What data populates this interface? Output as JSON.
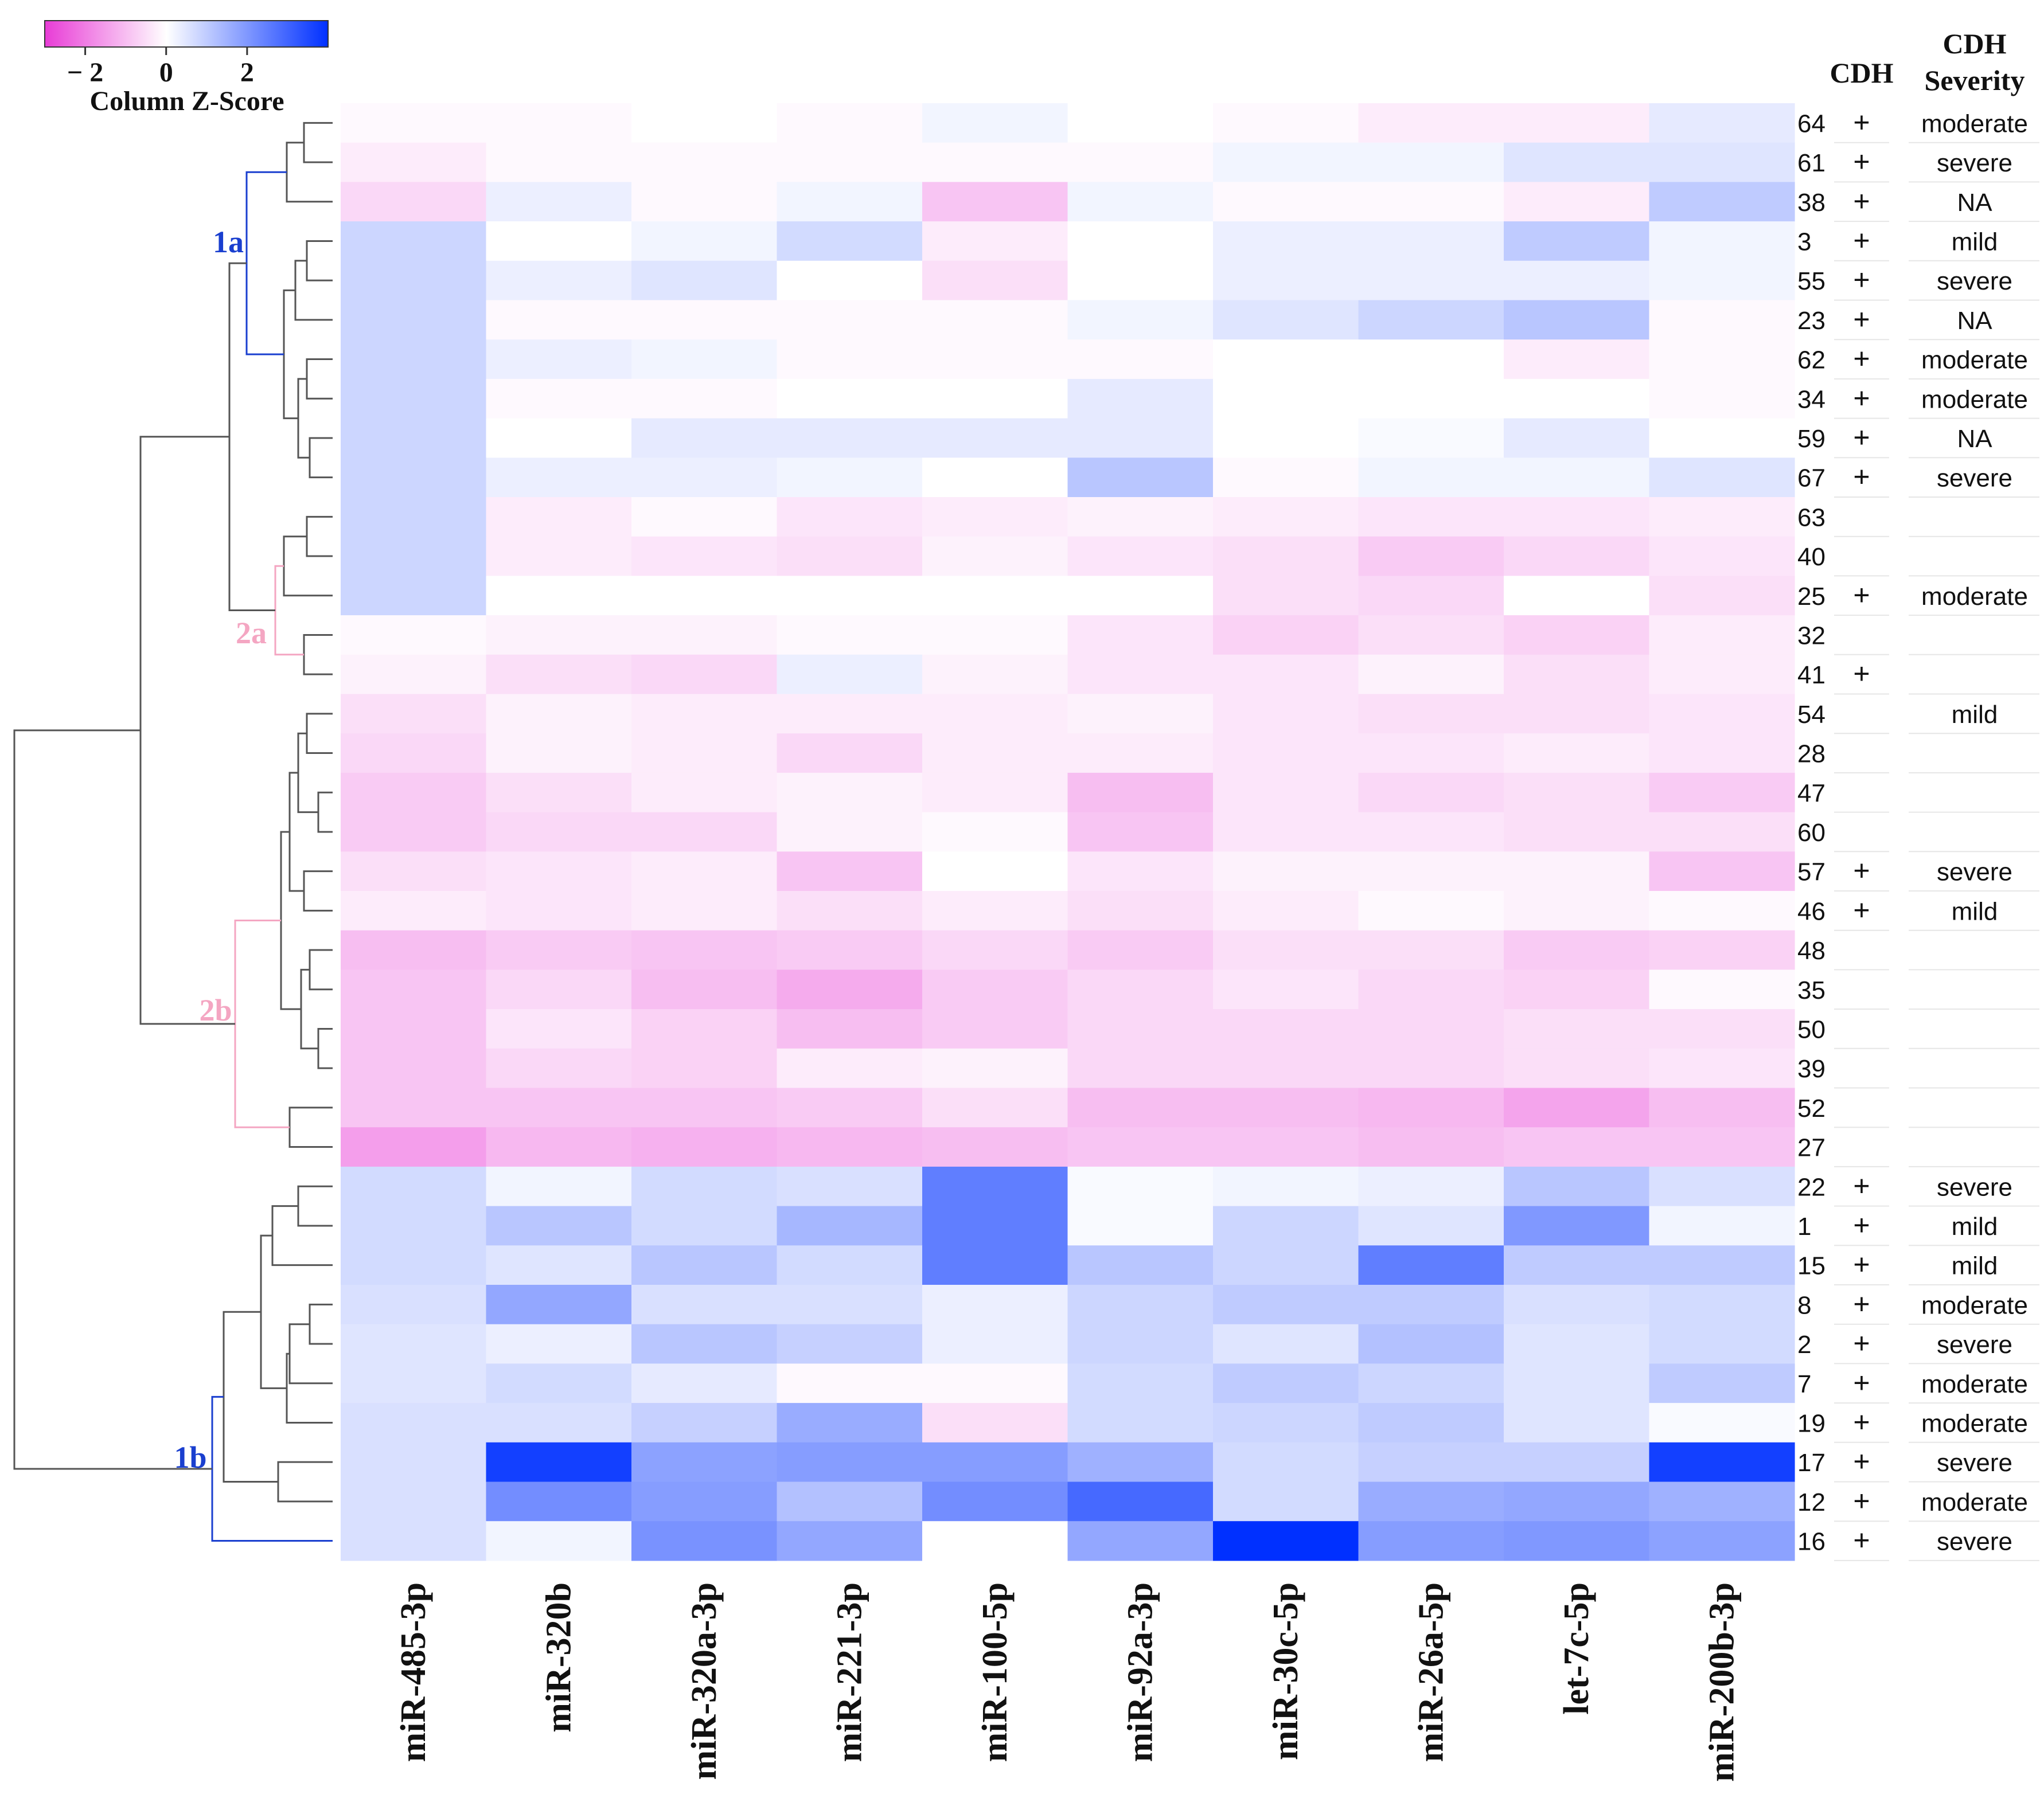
{
  "chart_data": {
    "type": "heatmap",
    "title": "",
    "legend": {
      "title": "Column Z-Score",
      "ticks": [
        {
          "value": -2,
          "label": "− 2"
        },
        {
          "value": 0,
          "label": "0"
        },
        {
          "value": 2,
          "label": "2"
        }
      ],
      "range": [
        -3,
        4
      ],
      "colors": {
        "low": "#e83cd6",
        "mid": "#ffffff",
        "high": "#0030ff"
      }
    },
    "columns": [
      "miR-485-3p",
      "miR-320b",
      "miR-320a-3p",
      "miR-221-3p",
      "miR-100-5p",
      "miR-92a-3p",
      "miR-30c-5p",
      "miR-26a-5p",
      "let-7c-5p",
      "miR-200b-3p"
    ],
    "rows": [
      {
        "sample": "64",
        "cdh": "+",
        "severity": "moderate"
      },
      {
        "sample": "61",
        "cdh": "+",
        "severity": "severe"
      },
      {
        "sample": "38",
        "cdh": "+",
        "severity": "NA"
      },
      {
        "sample": "3",
        "cdh": "+",
        "severity": "mild"
      },
      {
        "sample": "55",
        "cdh": "+",
        "severity": "severe"
      },
      {
        "sample": "23",
        "cdh": "+",
        "severity": "NA"
      },
      {
        "sample": "62",
        "cdh": "+",
        "severity": "moderate"
      },
      {
        "sample": "34",
        "cdh": "+",
        "severity": "moderate"
      },
      {
        "sample": "59",
        "cdh": "+",
        "severity": "NA"
      },
      {
        "sample": "67",
        "cdh": "+",
        "severity": "severe"
      },
      {
        "sample": "63",
        "cdh": "",
        "severity": ""
      },
      {
        "sample": "40",
        "cdh": "",
        "severity": ""
      },
      {
        "sample": "25",
        "cdh": "+",
        "severity": "moderate"
      },
      {
        "sample": "32",
        "cdh": "",
        "severity": ""
      },
      {
        "sample": "41",
        "cdh": "+",
        "severity": ""
      },
      {
        "sample": "54",
        "cdh": "",
        "severity": "mild"
      },
      {
        "sample": "28",
        "cdh": "",
        "severity": ""
      },
      {
        "sample": "47",
        "cdh": "",
        "severity": ""
      },
      {
        "sample": "60",
        "cdh": "",
        "severity": ""
      },
      {
        "sample": "57",
        "cdh": "+",
        "severity": "severe"
      },
      {
        "sample": "46",
        "cdh": "+",
        "severity": "mild"
      },
      {
        "sample": "48",
        "cdh": "",
        "severity": ""
      },
      {
        "sample": "35",
        "cdh": "",
        "severity": ""
      },
      {
        "sample": "50",
        "cdh": "",
        "severity": ""
      },
      {
        "sample": "39",
        "cdh": "",
        "severity": ""
      },
      {
        "sample": "52",
        "cdh": "",
        "severity": ""
      },
      {
        "sample": "27",
        "cdh": "",
        "severity": ""
      },
      {
        "sample": "22",
        "cdh": "+",
        "severity": "severe"
      },
      {
        "sample": "1",
        "cdh": "+",
        "severity": "mild"
      },
      {
        "sample": "15",
        "cdh": "+",
        "severity": "mild"
      },
      {
        "sample": "8",
        "cdh": "+",
        "severity": "moderate"
      },
      {
        "sample": "2",
        "cdh": "+",
        "severity": "severe"
      },
      {
        "sample": "7",
        "cdh": "+",
        "severity": "moderate"
      },
      {
        "sample": "19",
        "cdh": "+",
        "severity": "moderate"
      },
      {
        "sample": "17",
        "cdh": "+",
        "severity": "severe"
      },
      {
        "sample": "12",
        "cdh": "+",
        "severity": "moderate"
      },
      {
        "sample": "16",
        "cdh": "+",
        "severity": "severe"
      }
    ],
    "values": [
      [
        -0.1,
        -0.1,
        0,
        -0.1,
        0.2,
        0,
        -0.1,
        -0.3,
        -0.3,
        0.4
      ],
      [
        -0.3,
        -0.1,
        -0.1,
        -0.1,
        -0.1,
        -0.1,
        0.2,
        0.2,
        0.5,
        0.5
      ],
      [
        -0.6,
        0.3,
        -0.1,
        0.2,
        -0.9,
        0.2,
        -0.1,
        -0.1,
        -0.3,
        1
      ],
      [
        0.8,
        0,
        0.2,
        0.7,
        -0.3,
        0,
        0.3,
        0.3,
        1,
        0.2
      ],
      [
        0.8,
        0.3,
        0.5,
        0,
        -0.5,
        0,
        0.3,
        0.3,
        0.3,
        0.2
      ],
      [
        0.8,
        -0.1,
        -0.1,
        -0.1,
        -0.1,
        0.2,
        0.5,
        0.8,
        1.1,
        -0.1
      ],
      [
        0.8,
        0.3,
        0.2,
        -0.1,
        -0.1,
        -0.1,
        0,
        0,
        -0.3,
        -0.1
      ],
      [
        0.8,
        -0.1,
        -0.1,
        0,
        0,
        0.4,
        0,
        0,
        0,
        -0.1
      ],
      [
        0.8,
        0,
        0.4,
        0.4,
        0.4,
        0.4,
        0,
        0.1,
        0.4,
        0
      ],
      [
        0.8,
        0.3,
        0.3,
        0.2,
        0,
        1.1,
        -0.1,
        0.2,
        0.2,
        0.5
      ],
      [
        0.8,
        -0.3,
        -0.1,
        -0.4,
        -0.3,
        -0.2,
        -0.3,
        -0.4,
        -0.4,
        -0.3
      ],
      [
        0.8,
        -0.3,
        -0.4,
        -0.5,
        -0.2,
        -0.4,
        -0.5,
        -0.8,
        -0.6,
        -0.4
      ],
      [
        0.8,
        0,
        0,
        0,
        0,
        0,
        -0.5,
        -0.6,
        0,
        -0.5
      ],
      [
        -0.1,
        -0.2,
        -0.2,
        -0.1,
        -0.1,
        -0.4,
        -0.7,
        -0.5,
        -0.7,
        -0.3
      ],
      [
        -0.2,
        -0.5,
        -0.6,
        0.3,
        -0.2,
        -0.4,
        -0.4,
        -0.2,
        -0.5,
        -0.3
      ],
      [
        -0.5,
        -0.2,
        -0.3,
        -0.3,
        -0.3,
        -0.2,
        -0.4,
        -0.5,
        -0.5,
        -0.4
      ],
      [
        -0.6,
        -0.2,
        -0.3,
        -0.6,
        -0.3,
        -0.3,
        -0.4,
        -0.4,
        -0.3,
        -0.4
      ],
      [
        -0.8,
        -0.5,
        -0.3,
        -0.2,
        -0.3,
        -1,
        -0.4,
        -0.6,
        -0.5,
        -0.8
      ],
      [
        -0.8,
        -0.6,
        -0.6,
        -0.2,
        -0.1,
        -0.9,
        -0.4,
        -0.4,
        -0.5,
        -0.5
      ],
      [
        -0.5,
        -0.4,
        -0.3,
        -0.9,
        0,
        -0.4,
        -0.2,
        -0.2,
        -0.2,
        -0.9
      ],
      [
        -0.3,
        -0.4,
        -0.3,
        -0.5,
        -0.3,
        -0.5,
        -0.3,
        -0.1,
        -0.2,
        -0.1
      ],
      [
        -1,
        -0.8,
        -0.9,
        -0.8,
        -0.6,
        -0.8,
        -0.5,
        -0.5,
        -0.8,
        -0.7
      ],
      [
        -0.9,
        -0.6,
        -1,
        -1.3,
        -0.8,
        -0.6,
        -0.4,
        -0.6,
        -0.7,
        -0.1
      ],
      [
        -0.9,
        -0.4,
        -0.7,
        -1,
        -0.8,
        -0.6,
        -0.6,
        -0.6,
        -0.5,
        -0.5
      ],
      [
        -0.9,
        -0.6,
        -0.7,
        -0.3,
        -0.2,
        -0.6,
        -0.6,
        -0.6,
        -0.5,
        -0.4
      ],
      [
        -0.9,
        -0.9,
        -0.9,
        -0.8,
        -0.5,
        -1,
        -1,
        -1.1,
        -1.4,
        -1
      ],
      [
        -1.5,
        -1.1,
        -1.2,
        -1.1,
        -1,
        -0.9,
        -0.9,
        -1,
        -0.9,
        -0.9
      ]
    ],
    "values_cluster_1b": [
      [
        0.7,
        0.2,
        0.7,
        0.6,
        2.5,
        0.1,
        0.2,
        0.3,
        1.1,
        0.6
      ],
      [
        0.7,
        1.1,
        0.7,
        1.4,
        2.5,
        0.1,
        0.8,
        0.5,
        2,
        0.2
      ],
      [
        0.7,
        0.5,
        1.1,
        0.7,
        2.5,
        1.1,
        0.8,
        2.5,
        1,
        1
      ],
      [
        0.6,
        1.7,
        0.6,
        0.6,
        0.3,
        0.8,
        1,
        1,
        0.6,
        0.7
      ],
      [
        0.5,
        0.3,
        1.1,
        0.9,
        0.3,
        0.8,
        0.5,
        1.2,
        0.5,
        0.7
      ],
      [
        0.5,
        0.7,
        0.4,
        -0.1,
        -0.1,
        0.7,
        1,
        0.8,
        0.5,
        1
      ],
      [
        0.6,
        0.6,
        0.9,
        1.6,
        -0.5,
        0.7,
        0.8,
        1,
        0.5,
        0.1
      ],
      [
        0.6,
        3.7,
        1.8,
        1.9,
        1.9,
        1.5,
        0.7,
        0.9,
        0.9,
        3.7
      ],
      [
        0.6,
        2.2,
        1.9,
        1.2,
        2.2,
        2.9,
        0.7,
        1.6,
        1.7,
        1.5
      ],
      [
        0.6,
        0.2,
        2.1,
        1.7,
        0,
        1.7,
        4,
        1.9,
        2,
        1.8
      ]
    ],
    "clusters": [
      {
        "label": "1a",
        "color": "#1a3fcf"
      },
      {
        "label": "2a",
        "color": "#f4a6c2"
      },
      {
        "label": "2b",
        "color": "#f4a6c2"
      },
      {
        "label": "1b",
        "color": "#1a3fcf"
      }
    ],
    "annotation_headers": {
      "cdh": "CDH",
      "severity_line1": "CDH",
      "severity_line2": "Severity"
    }
  }
}
